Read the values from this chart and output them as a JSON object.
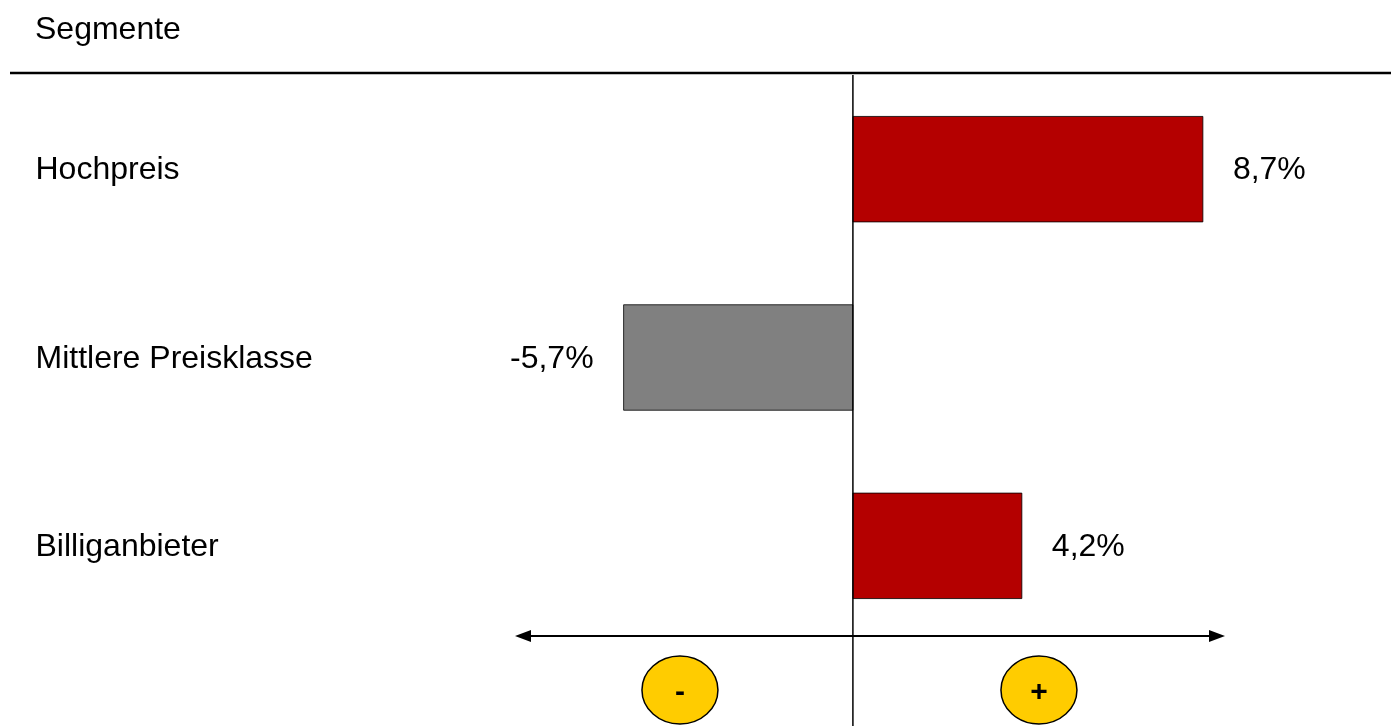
{
  "chart_data": {
    "type": "bar",
    "orientation": "horizontal",
    "title": "Segmente",
    "categories": [
      "Hochpreis",
      "Mittlere Preisklasse",
      "Billiganbieter"
    ],
    "values": [
      8.7,
      -5.7,
      4.2
    ],
    "colors": [
      "#b40000",
      "#808080",
      "#b40000"
    ],
    "value_labels": [
      "8,7%",
      "-5,7%",
      "4,2%"
    ],
    "xlim": [
      -8.4,
      9.25
    ],
    "ref_lines": [
      {
        "axis": "x",
        "value": 0,
        "color": "#000000"
      }
    ],
    "annotations": [
      "-",
      "+"
    ],
    "tick_labels": "y"
  }
}
